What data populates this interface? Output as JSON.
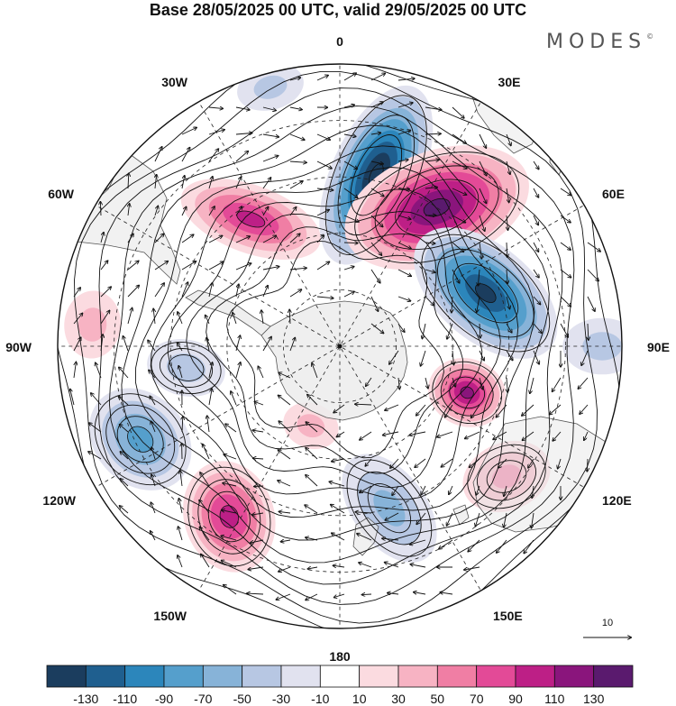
{
  "title": "Base 28/05/2025 00 UTC, valid 29/05/2025 00 UTC",
  "brand": "MODES",
  "brand_mark": "©",
  "map": {
    "projection": "south-polar-stereographic",
    "longitude_labels": [
      "0",
      "30E",
      "60E",
      "90E",
      "120E",
      "150E",
      "180",
      "150W",
      "120W",
      "90W",
      "60W",
      "30W"
    ],
    "reference_vector_label": "10",
    "colors": {
      "land": "#ececec",
      "land_outline": "#555555",
      "grid": "#222222",
      "stream": "#111111"
    }
  },
  "colorbar": {
    "tick_labels": [
      "-130",
      "-110",
      "-90",
      "-70",
      "-50",
      "-30",
      "-10",
      "10",
      "30",
      "50",
      "70",
      "90",
      "110",
      "130"
    ],
    "colors": [
      "#1b3d5e",
      "#1f5f8f",
      "#2c86bb",
      "#559fcc",
      "#87b3d8",
      "#b7c7e3",
      "#e1e2ef",
      "#ffffff",
      "#fbdbe0",
      "#f7b3c3",
      "#f07ea4",
      "#e34a97",
      "#bd1f86",
      "#8a157c",
      "#5a1a6e"
    ]
  },
  "anomaly_cells": [
    {
      "lon": 12,
      "dist": 0.62,
      "value": -140,
      "rx": 0.16,
      "ry": 0.34,
      "rot": 12
    },
    {
      "lon": 35,
      "dist": 0.6,
      "value": 130,
      "rx": 0.2,
      "ry": 0.34,
      "rot": 35
    },
    {
      "lon": 70,
      "dist": 0.55,
      "value": -135,
      "rx": 0.17,
      "ry": 0.3,
      "rot": 60
    },
    {
      "lon": 110,
      "dist": 0.48,
      "value": 100,
      "rx": 0.12,
      "ry": 0.14,
      "rot": 0
    },
    {
      "lon": 128,
      "dist": 0.75,
      "value": 50,
      "rx": 0.16,
      "ry": 0.12,
      "rot": 30
    },
    {
      "lon": 163,
      "dist": 0.6,
      "value": -55,
      "rx": 0.13,
      "ry": 0.22,
      "rot": 160
    },
    {
      "lon": 213,
      "dist": 0.72,
      "value": 85,
      "rx": 0.2,
      "ry": 0.16,
      "rot": 40
    },
    {
      "lon": 245,
      "dist": 0.78,
      "value": -70,
      "rx": 0.16,
      "ry": 0.2,
      "rot": 70
    },
    {
      "lon": 262,
      "dist": 0.55,
      "value": -30,
      "rx": 0.1,
      "ry": 0.14,
      "rot": 20
    },
    {
      "lon": 325,
      "dist": 0.55,
      "value": 95,
      "rx": 0.12,
      "ry": 0.26,
      "rot": -35
    },
    {
      "lon": 275,
      "dist": 0.88,
      "value": 35,
      "rx": 0.12,
      "ry": 0.1,
      "rot": 0
    },
    {
      "lon": 345,
      "dist": 0.95,
      "value": -30,
      "rx": 0.12,
      "ry": 0.08,
      "rot": 0
    },
    {
      "lon": 200,
      "dist": 0.3,
      "value": 30,
      "rx": 0.1,
      "ry": 0.08,
      "rot": 0
    },
    {
      "lon": 90,
      "dist": 0.93,
      "value": -20,
      "rx": 0.1,
      "ry": 0.14,
      "rot": 0
    }
  ]
}
